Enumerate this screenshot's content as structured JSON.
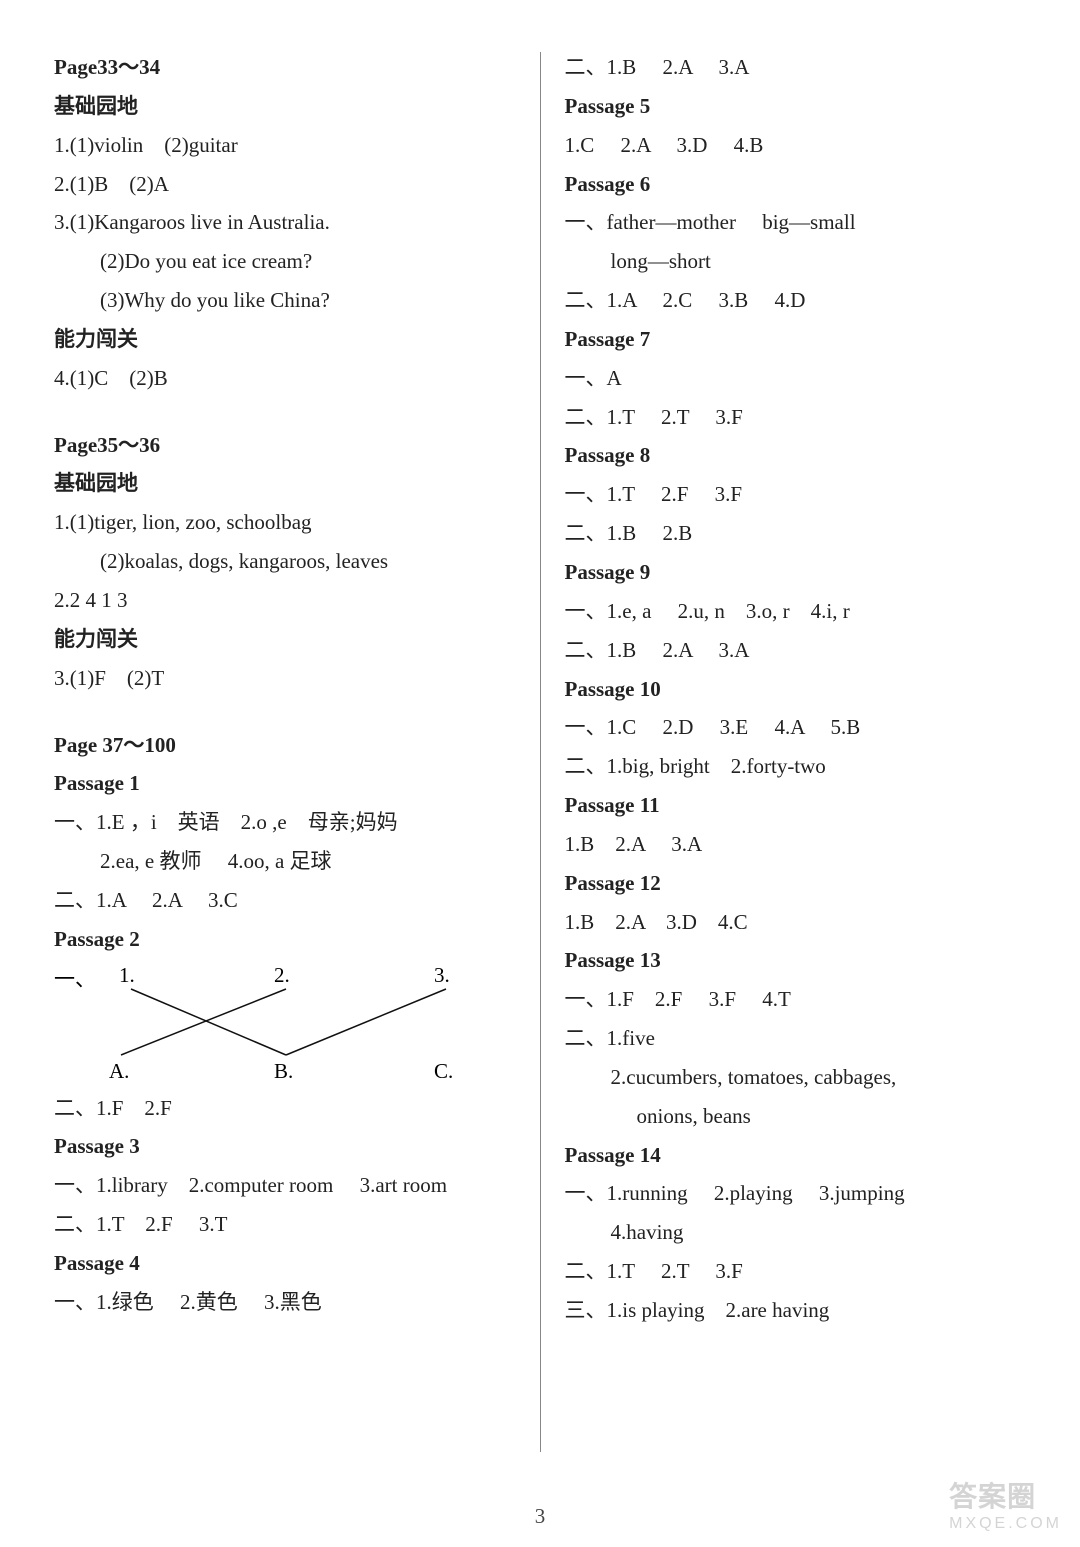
{
  "page_number": "3",
  "watermark": {
    "main": "答案圈",
    "sub": "MXQE.COM"
  },
  "font": {
    "body_pt": 16,
    "family": "Times New Roman / SimSun",
    "color": "#222222"
  },
  "colors": {
    "background": "#ffffff",
    "text": "#222222",
    "divider": "#888888",
    "watermark": "rgba(160,160,160,0.45)"
  },
  "left": {
    "sec1": {
      "title": "Page33～34",
      "sub1": "基础园地",
      "l1": "1.(1)violin　(2)guitar",
      "l2": "2.(1)B　(2)A",
      "l3": "3.(1)Kangaroos live in Australia.",
      "l3b": "(2)Do you eat ice cream?",
      "l3c": "(3)Why do you like China?",
      "sub2": "能力闯关",
      "l4": "4.(1)C　(2)B"
    },
    "sec2": {
      "title": "Page35～36",
      "sub1": "基础园地",
      "l1": "1.(1)tiger, lion, zoo, schoolbag",
      "l1b": "(2)koalas, dogs, kangaroos, leaves",
      "l2": "2.2 4 1 3",
      "sub2": "能力闯关",
      "l3": "3.(1)F　(2)T"
    },
    "sec3": {
      "title": "Page 37～100",
      "p1": {
        "h": "Passage 1",
        "l1": "一、1.E ，i　英语　2.o ,e　母亲;妈妈",
        "l1b": "2.ea, e 教师　 4.oo, a 足球",
        "l2": "二、1.A　 2.A　 3.C"
      },
      "p2": {
        "h": "Passage 2",
        "match": {
          "prefix": "一、",
          "top": [
            "1.",
            "2.",
            "3."
          ],
          "bottom": [
            "A.",
            "B.",
            "C."
          ],
          "top_x": [
            65,
            220,
            380
          ],
          "bot_x": [
            55,
            220,
            380
          ],
          "edges": [
            [
              0,
              1
            ],
            [
              1,
              0
            ],
            [
              2,
              1
            ]
          ],
          "line_color": "#111111",
          "line_width": 1.5
        },
        "l2": "二、1.F　2.F"
      },
      "p3": {
        "h": "Passage 3",
        "l1": "一、1.library　2.computer room　 3.art room",
        "l2": "二、1.T　2.F　 3.T"
      },
      "p4": {
        "h": "Passage 4",
        "l1": "一、1.绿色　 2.黄色　 3.黑色"
      }
    }
  },
  "right": {
    "p4b": "二、1.B　 2.A　 3.A",
    "p5": {
      "h": "Passage 5",
      "l1": "1.C　 2.A　 3.D　 4.B"
    },
    "p6": {
      "h": "Passage 6",
      "l1": "一、father—mother　 big—small",
      "l1b": "long—short",
      "l2": "二、1.A　 2.C　 3.B　 4.D"
    },
    "p7": {
      "h": "Passage 7",
      "l1": "一、A",
      "l2": "二、1.T　 2.T　 3.F"
    },
    "p8": {
      "h": "Passage 8",
      "l1": "一、1.T　 2.F　 3.F",
      "l2": "二、1.B　 2.B"
    },
    "p9": {
      "h": "Passage 9",
      "l1": "一、1.e, a　 2.u, n　3.o, r　4.i, r",
      "l2": "二、1.B　 2.A　 3.A"
    },
    "p10": {
      "h": "Passage 10",
      "l1": "一、1.C　 2.D　 3.E　 4.A　 5.B",
      "l2": "二、1.big, bright　2.forty-two"
    },
    "p11": {
      "h": "Passage 11",
      "l1": "1.B　2.A　 3.A"
    },
    "p12": {
      "h": "Passage 12",
      "l1": "1.B　2.A　3.D　4.C"
    },
    "p13": {
      "h": "Passage 13",
      "l1": "一、1.F　2.F　 3.F　 4.T",
      "l2": "二、1.five",
      "l2b": "2.cucumbers, tomatoes, cabbages,",
      "l2c": "onions, beans"
    },
    "p14": {
      "h": "Passage 14",
      "l1": "一、1.running　 2.playing　 3.jumping",
      "l1b": "4.having",
      "l2": "二、1.T　 2.T　 3.F",
      "l3": "三、1.is playing　2.are having"
    }
  }
}
